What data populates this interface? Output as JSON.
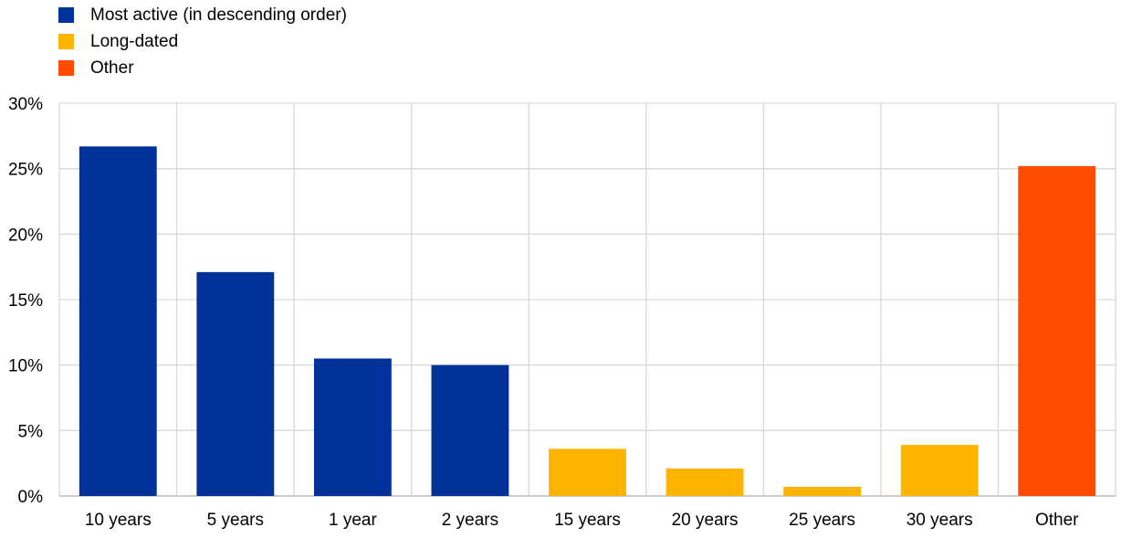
{
  "legend": [
    {
      "label": "Most active (in descending order)",
      "color": "#003299"
    },
    {
      "label": "Long-dated",
      "color": "#FFB400"
    },
    {
      "label": "Other",
      "color": "#FF4B00"
    }
  ],
  "chart_data": {
    "type": "bar",
    "title": "",
    "xlabel": "",
    "ylabel": "",
    "categories": [
      "10 years",
      "5 years",
      "1 year",
      "2 years",
      "15 years",
      "20 years",
      "25 years",
      "30 years",
      "Other"
    ],
    "values": [
      26.7,
      17.1,
      10.5,
      10.0,
      3.6,
      2.1,
      0.7,
      3.9,
      25.2
    ],
    "groups": [
      "Most active (in descending order)",
      "Most active (in descending order)",
      "Most active (in descending order)",
      "Most active (in descending order)",
      "Long-dated",
      "Long-dated",
      "Long-dated",
      "Long-dated",
      "Other"
    ],
    "ylim": [
      0,
      30
    ],
    "yticks": [
      0,
      5,
      10,
      15,
      20,
      25,
      30
    ],
    "ytick_labels": [
      "0%",
      "5%",
      "10%",
      "15%",
      "20%",
      "25%",
      "30%"
    ],
    "grid": true,
    "legend_position": "top-left"
  }
}
